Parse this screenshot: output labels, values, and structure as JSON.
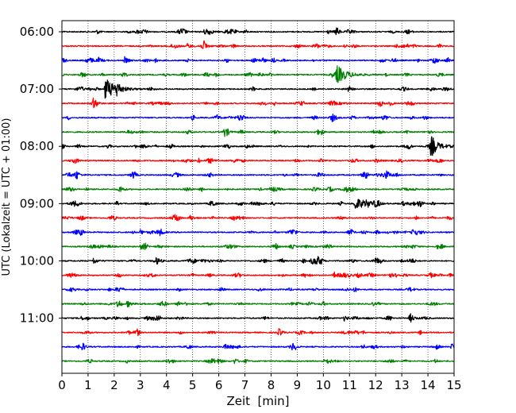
{
  "chart_data": {
    "type": "line",
    "xlabel": "Zeit  [min]",
    "ylabel": "UTC (Lokalzeit = UTC + 01:00)",
    "xlim": [
      0,
      15
    ],
    "x_ticks": [
      0,
      1,
      2,
      3,
      4,
      5,
      6,
      7,
      8,
      9,
      10,
      11,
      12,
      13,
      14,
      15
    ],
    "x_grid": true,
    "y_tick_labels": [
      "06:00",
      "07:00",
      "08:00",
      "09:00",
      "10:00",
      "11:00"
    ],
    "trace_interval_min": 15,
    "trace_colors": [
      "#000000",
      "#ff0000",
      "#0000ff",
      "#008000"
    ],
    "series": [
      {
        "start": "06:00",
        "color": "#000000",
        "events": [
          {
            "t": 10.5,
            "amp": 0.25
          }
        ]
      },
      {
        "start": "06:15",
        "color": "#ff0000",
        "events": [
          {
            "t": 4.8,
            "amp": 0.3
          },
          {
            "t": 5.4,
            "amp": 0.35
          }
        ]
      },
      {
        "start": "06:30",
        "color": "#0000ff",
        "events": [
          {
            "t": 1.4,
            "amp": 0.3
          },
          {
            "t": 2.4,
            "amp": 0.35
          },
          {
            "t": 12.2,
            "amp": 0.3
          }
        ]
      },
      {
        "start": "06:45",
        "color": "#008000",
        "events": [
          {
            "t": 7.5,
            "amp": 0.3
          },
          {
            "t": 10.5,
            "amp": 1.0
          }
        ]
      },
      {
        "start": "07:00",
        "color": "#000000",
        "events": [
          {
            "t": 1.65,
            "amp": 1.2
          },
          {
            "t": 2.1,
            "amp": 0.6
          }
        ]
      },
      {
        "start": "07:15",
        "color": "#ff0000",
        "events": [
          {
            "t": 1.2,
            "amp": 0.35
          }
        ]
      },
      {
        "start": "07:30",
        "color": "#0000ff",
        "events": [
          {
            "t": 10.3,
            "amp": 0.3
          }
        ]
      },
      {
        "start": "07:45",
        "color": "#008000",
        "events": [
          {
            "t": 6.2,
            "amp": 0.35
          }
        ]
      },
      {
        "start": "08:00",
        "color": "#000000",
        "events": [
          {
            "t": 7.0,
            "amp": 0.3
          },
          {
            "t": 14.1,
            "amp": 0.75
          }
        ]
      },
      {
        "start": "08:15",
        "color": "#ff0000",
        "events": [
          {
            "t": 12.0,
            "amp": 0.25
          }
        ]
      },
      {
        "start": "08:30",
        "color": "#0000ff",
        "events": [
          {
            "t": 0.5,
            "amp": 0.4
          }
        ]
      },
      {
        "start": "08:45",
        "color": "#008000",
        "events": [
          {
            "t": 2.2,
            "amp": 0.25
          }
        ]
      },
      {
        "start": "09:00",
        "color": "#000000",
        "events": [
          {
            "t": 11.2,
            "amp": 0.7
          },
          {
            "t": 13.0,
            "amp": 0.3
          }
        ]
      },
      {
        "start": "09:15",
        "color": "#ff0000",
        "events": [
          {
            "t": 4.9,
            "amp": 0.35
          }
        ]
      },
      {
        "start": "09:30",
        "color": "#0000ff",
        "events": [
          {
            "t": 3.0,
            "amp": 0.3
          }
        ]
      },
      {
        "start": "09:45",
        "color": "#008000",
        "events": [
          {
            "t": 3.0,
            "amp": 0.25
          }
        ]
      },
      {
        "start": "10:00",
        "color": "#000000",
        "events": [
          {
            "t": 1.2,
            "amp": 0.35
          },
          {
            "t": 5.0,
            "amp": 0.3
          }
        ]
      },
      {
        "start": "10:15",
        "color": "#ff0000",
        "events": [
          {
            "t": 10.4,
            "amp": 0.35
          }
        ]
      },
      {
        "start": "10:30",
        "color": "#0000ff",
        "events": [
          {
            "t": 7.5,
            "amp": 0.25
          }
        ]
      },
      {
        "start": "10:45",
        "color": "#008000",
        "events": [
          {
            "t": 2.5,
            "amp": 0.4
          }
        ]
      },
      {
        "start": "11:00",
        "color": "#000000",
        "events": [
          {
            "t": 13.3,
            "amp": 0.6
          },
          {
            "t": 10.8,
            "amp": 0.3
          }
        ]
      },
      {
        "start": "11:15",
        "color": "#ff0000",
        "events": [
          {
            "t": 8.3,
            "amp": 0.35
          }
        ]
      },
      {
        "start": "11:30",
        "color": "#0000ff",
        "events": [
          {
            "t": 14.9,
            "amp": 0.4
          }
        ]
      },
      {
        "start": "11:45",
        "color": "#008000",
        "events": [
          {
            "t": 6.6,
            "amp": 0.3
          }
        ]
      }
    ]
  }
}
